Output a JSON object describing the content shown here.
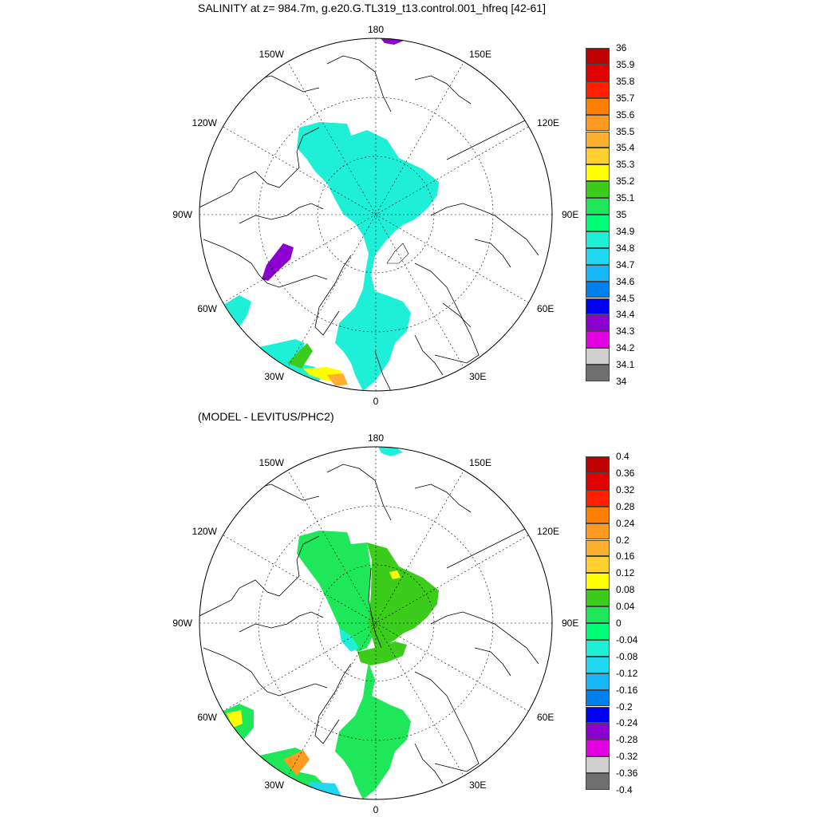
{
  "figure": {
    "top_title": "SALINITY at z= 984.7m, g.e20.G.TL319_t13.control.001_hfreq [42-61]",
    "bottom_title": "(MODEL - LEVITUS/PHC2)"
  },
  "map_labels": {
    "top_center": "180",
    "bottom_center": "0",
    "left_center": "90W",
    "right_center": "90E",
    "upper_left": "150W",
    "upper_right": "150E",
    "mid_upper_left": "120W",
    "mid_upper_right": "120E",
    "mid_lower_left": "60W",
    "mid_lower_right": "60E",
    "lower_left": "30W",
    "lower_right": "30E"
  },
  "colorbar_top": {
    "ticks": [
      "36",
      "35.9",
      "35.8",
      "35.7",
      "35.6",
      "35.5",
      "35.4",
      "35.3",
      "35.2",
      "35.1",
      "35",
      "34.9",
      "34.8",
      "34.7",
      "34.6",
      "34.5",
      "34.4",
      "34.3",
      "34.2",
      "34.1",
      "34"
    ],
    "colors": [
      "#c00000",
      "#e00000",
      "#ff2000",
      "#ff7f00",
      "#ff9a20",
      "#ffb030",
      "#ffd030",
      "#ffff00",
      "#3ccc1c",
      "#1ee85a",
      "#00ff78",
      "#1ef0d8",
      "#20d8f0",
      "#18b8f8",
      "#0080f0",
      "#0000f0",
      "#8c00d0",
      "#e000e0",
      "#d0d0d0",
      "#707070"
    ]
  },
  "colorbar_bottom": {
    "ticks": [
      "0.4",
      "0.36",
      "0.32",
      "0.28",
      "0.24",
      "0.2",
      "0.16",
      "0.12",
      "0.08",
      "0.04",
      "0",
      "-0.04",
      "-0.08",
      "-0.12",
      "-0.16",
      "-0.2",
      "-0.24",
      "-0.28",
      "-0.32",
      "-0.36",
      "-0.4"
    ],
    "colors": [
      "#c00000",
      "#e00000",
      "#ff2000",
      "#ff7f00",
      "#ff9a20",
      "#ffb030",
      "#ffd030",
      "#ffff00",
      "#3ccc1c",
      "#1ee85a",
      "#00ff78",
      "#1ef0d8",
      "#20d8f0",
      "#18b8f8",
      "#0080f0",
      "#0000f0",
      "#8c00d0",
      "#e000e0",
      "#d0d0d0",
      "#707070"
    ]
  },
  "map_top": {
    "central_basin_color": "#1ef0d8",
    "baffin_color": "#8c00d0",
    "top_patch_color": "#8c00d0",
    "shelf_color": "#1ef0d8"
  },
  "map_bottom": {
    "left_basin_color": "#1ee85a",
    "right_basin_color": "#3ccc1c",
    "lower_basin_color": "#1ee85a",
    "edge_color": "#1ef0d8",
    "top_patch_color": "#1ef0d8",
    "warm_spot_color": "#ffff00"
  }
}
